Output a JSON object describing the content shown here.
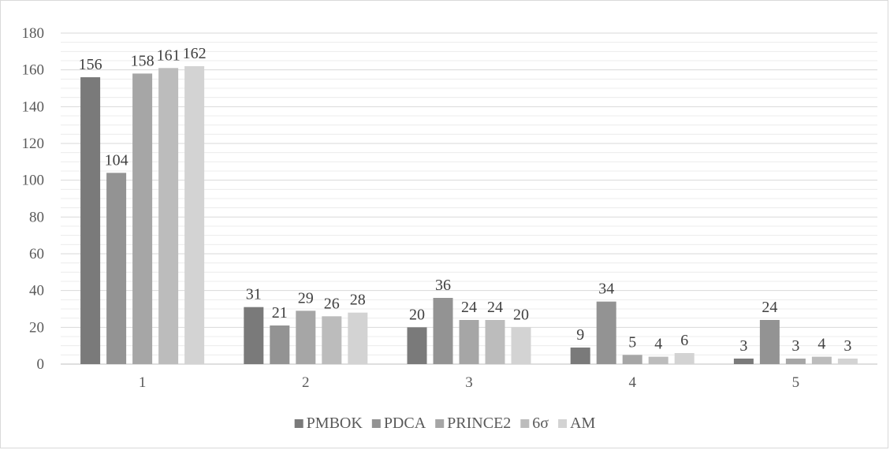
{
  "chart_data": {
    "type": "bar",
    "title": "",
    "xlabel": "",
    "ylabel": "",
    "categories": [
      "1",
      "2",
      "3",
      "4",
      "5"
    ],
    "ylim": [
      0,
      180
    ],
    "yticks": [
      0,
      20,
      40,
      60,
      80,
      100,
      120,
      140,
      160,
      180
    ],
    "grid": true,
    "legend_position": "bottom",
    "data_labels": true,
    "series": [
      {
        "name": "PMBOK",
        "values": [
          156,
          31,
          20,
          9,
          3
        ],
        "color": "#7a7a7a"
      },
      {
        "name": "PDCA",
        "values": [
          104,
          21,
          36,
          34,
          24
        ],
        "color": "#939393"
      },
      {
        "name": "PRINCE2",
        "values": [
          158,
          29,
          24,
          5,
          3
        ],
        "color": "#a6a6a6"
      },
      {
        "name": "6σ",
        "values": [
          161,
          26,
          24,
          4,
          4
        ],
        "color": "#bcbcbc"
      },
      {
        "name": "AM",
        "values": [
          162,
          28,
          20,
          6,
          3
        ],
        "color": "#d3d3d3"
      }
    ]
  },
  "colors": {
    "major_grid": "#d9d9d9",
    "minor_grid": "#ececec",
    "axis": "#bfbfbf"
  }
}
